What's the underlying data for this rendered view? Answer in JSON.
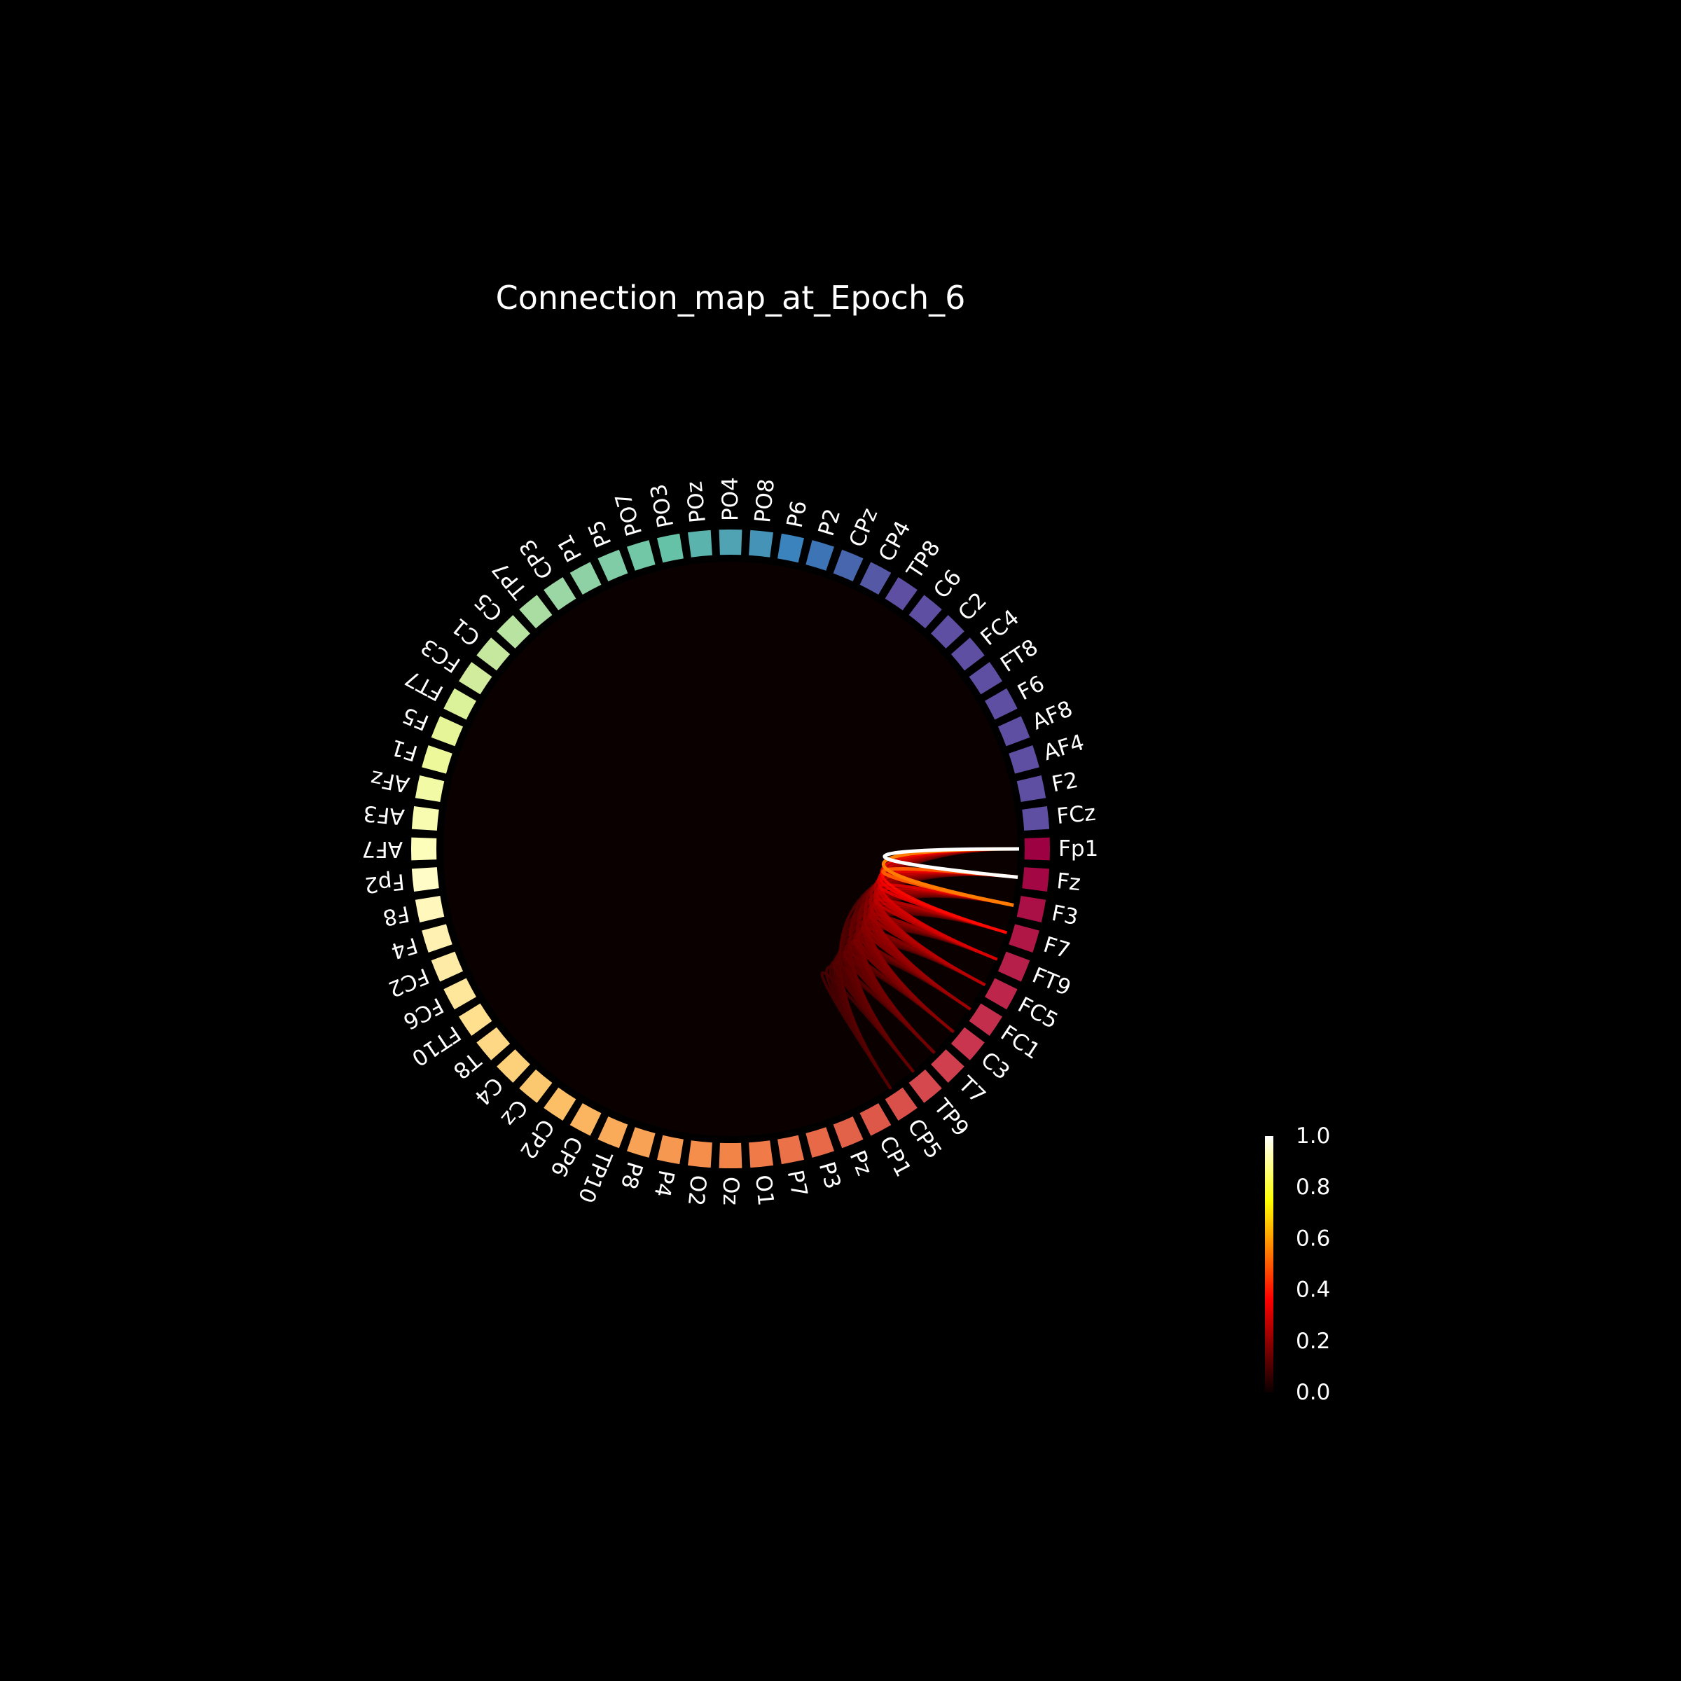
{
  "chart_data": {
    "type": "circular-connectivity",
    "title": "Connection_map_at_Epoch_6",
    "background": "#000000",
    "plot_face_color": "#0a0000",
    "nodes": [
      "Fp1",
      "Fz",
      "F3",
      "F7",
      "FT9",
      "FC5",
      "FC1",
      "C3",
      "T7",
      "TP9",
      "CP5",
      "CP1",
      "Pz",
      "P3",
      "P7",
      "O1",
      "Oz",
      "O2",
      "P4",
      "P8",
      "TP10",
      "CP6",
      "CP2",
      "Cz",
      "C4",
      "T8",
      "FT10",
      "FC6",
      "FC2",
      "F4",
      "F8",
      "Fp2",
      "AF7",
      "AF3",
      "AFz",
      "F1",
      "F5",
      "FT7",
      "FC3",
      "C1",
      "C5",
      "TP7",
      "CP3",
      "P1",
      "P5",
      "PO7",
      "PO3",
      "POz",
      "PO4",
      "PO8",
      "P6",
      "P2",
      "CPz",
      "CP4",
      "TP8",
      "C6",
      "C2",
      "FC4",
      "FT8",
      "F6",
      "AF8",
      "AF4",
      "F2",
      "FCz"
    ],
    "node_colors": [
      "#9e0142",
      "#a40844",
      "#aa1045",
      "#b01747",
      "#b61f49",
      "#bd264a",
      "#c32e4c",
      "#c9354e",
      "#d03f4e",
      "#d5484d",
      "#d9504b",
      "#de584a",
      "#e26149",
      "#e76948",
      "#eb7148",
      "#f07a48",
      "#f38448",
      "#f58e4b",
      "#f79850",
      "#f8a255",
      "#faab5a",
      "#fbb560",
      "#fcbf65",
      "#fcc86f",
      "#fdd07a",
      "#fed885",
      "#fee08f",
      "#fee79b",
      "#feeca6",
      "#fff1b1",
      "#fff7bc",
      "#fffcc7",
      "#fcfeba",
      "#f7fcb0",
      "#f2faa5",
      "#edf89b",
      "#e6f598",
      "#dbf19a",
      "#d0ec9c",
      "#c5e89e",
      "#b8e3a0",
      "#aadda2",
      "#9bd7a4",
      "#8dd1a5",
      "#7fcca6",
      "#72c7a6",
      "#65c2a6",
      "#5ab3ac",
      "#4fa3b2",
      "#4593b7",
      "#3a83bd",
      "#3d74b5",
      "#4866ad",
      "#5458a5",
      "#5e4fa2",
      "#5e4fa2",
      "#5e4fa2",
      "#5e4fa2",
      "#5e4fa2",
      "#5e4fa2",
      "#5e4fa2",
      "#5e4fa2",
      "#5e4fa2",
      "#5e4fa2"
    ],
    "connections": [
      {
        "source": "Fp1",
        "target": "Fz",
        "value": 1.0
      },
      {
        "source": "Fp1",
        "target": "F3",
        "value": 0.55
      },
      {
        "source": "Fz",
        "target": "F3",
        "value": 0.5
      },
      {
        "source": "Fp1",
        "target": "F7",
        "value": 0.38
      },
      {
        "source": "Fz",
        "target": "F7",
        "value": 0.34
      },
      {
        "source": "F3",
        "target": "F7",
        "value": 0.32
      },
      {
        "source": "Fp1",
        "target": "FT9",
        "value": 0.3
      },
      {
        "source": "Fz",
        "target": "FT9",
        "value": 0.28
      },
      {
        "source": "F3",
        "target": "FT9",
        "value": 0.27
      },
      {
        "source": "F7",
        "target": "FT9",
        "value": 0.26
      },
      {
        "source": "Fp1",
        "target": "FC5",
        "value": 0.25
      },
      {
        "source": "Fz",
        "target": "FC5",
        "value": 0.24
      },
      {
        "source": "F3",
        "target": "FC5",
        "value": 0.23
      },
      {
        "source": "F7",
        "target": "FC5",
        "value": 0.22
      },
      {
        "source": "FT9",
        "target": "FC5",
        "value": 0.21
      },
      {
        "source": "Fp1",
        "target": "FC1",
        "value": 0.21
      },
      {
        "source": "Fz",
        "target": "FC1",
        "value": 0.2
      },
      {
        "source": "F3",
        "target": "FC1",
        "value": 0.2
      },
      {
        "source": "F7",
        "target": "FC1",
        "value": 0.19
      },
      {
        "source": "FT9",
        "target": "FC1",
        "value": 0.19
      },
      {
        "source": "FC5",
        "target": "FC1",
        "value": 0.18
      },
      {
        "source": "Fp1",
        "target": "C3",
        "value": 0.18
      },
      {
        "source": "Fz",
        "target": "C3",
        "value": 0.18
      },
      {
        "source": "F3",
        "target": "C3",
        "value": 0.17
      },
      {
        "source": "F7",
        "target": "C3",
        "value": 0.17
      },
      {
        "source": "FT9",
        "target": "C3",
        "value": 0.16
      },
      {
        "source": "FC5",
        "target": "C3",
        "value": 0.16
      },
      {
        "source": "FC1",
        "target": "C3",
        "value": 0.16
      },
      {
        "source": "Fp1",
        "target": "T7",
        "value": 0.15
      },
      {
        "source": "Fz",
        "target": "T7",
        "value": 0.15
      },
      {
        "source": "F3",
        "target": "T7",
        "value": 0.15
      },
      {
        "source": "F7",
        "target": "T7",
        "value": 0.14
      },
      {
        "source": "FT9",
        "target": "T7",
        "value": 0.14
      },
      {
        "source": "FC5",
        "target": "T7",
        "value": 0.14
      },
      {
        "source": "FC1",
        "target": "T7",
        "value": 0.13
      },
      {
        "source": "C3",
        "target": "T7",
        "value": 0.13
      },
      {
        "source": "Fp1",
        "target": "TP9",
        "value": 0.13
      },
      {
        "source": "Fz",
        "target": "TP9",
        "value": 0.13
      },
      {
        "source": "F3",
        "target": "TP9",
        "value": 0.12
      },
      {
        "source": "F7",
        "target": "TP9",
        "value": 0.12
      },
      {
        "source": "FT9",
        "target": "TP9",
        "value": 0.12
      },
      {
        "source": "FC5",
        "target": "TP9",
        "value": 0.12
      },
      {
        "source": "FC1",
        "target": "TP9",
        "value": 0.11
      },
      {
        "source": "C3",
        "target": "TP9",
        "value": 0.11
      },
      {
        "source": "T7",
        "target": "TP9",
        "value": 0.11
      },
      {
        "source": "Fp1",
        "target": "CP5",
        "value": 0.11
      },
      {
        "source": "Fz",
        "target": "CP5",
        "value": 0.1
      },
      {
        "source": "F3",
        "target": "CP5",
        "value": 0.1
      },
      {
        "source": "F7",
        "target": "CP5",
        "value": 0.1
      },
      {
        "source": "FT9",
        "target": "CP5",
        "value": 0.1
      },
      {
        "source": "FC5",
        "target": "CP5",
        "value": 0.1
      },
      {
        "source": "FC1",
        "target": "CP5",
        "value": 0.09
      },
      {
        "source": "C3",
        "target": "CP5",
        "value": 0.09
      },
      {
        "source": "T7",
        "target": "CP5",
        "value": 0.09
      },
      {
        "source": "TP9",
        "target": "CP5",
        "value": 0.09
      }
    ],
    "colorbar": {
      "colormap": "hot",
      "vmin": 0.0,
      "vmax": 1.0,
      "ticks": [
        "0.0",
        "0.2",
        "0.4",
        "0.6",
        "0.8",
        "1.0"
      ]
    }
  }
}
